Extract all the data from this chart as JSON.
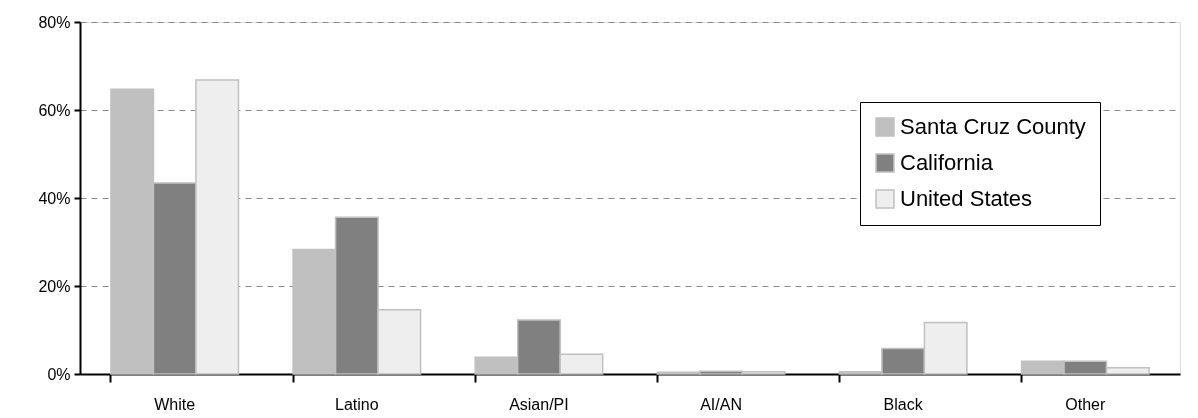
{
  "chart_data": {
    "type": "bar",
    "categories": [
      "White",
      "Latino",
      "Asian/PI",
      "AI/AN",
      "Black",
      "Other"
    ],
    "series": [
      {
        "name": "Santa Cruz County",
        "color": "#c0c0c0",
        "values": [
          64.7,
          28.3,
          3.8,
          0.4,
          0.5,
          2.9
        ]
      },
      {
        "name": "California",
        "color": "#808080",
        "values": [
          43.4,
          35.6,
          12.3,
          0.6,
          5.8,
          2.9
        ]
      },
      {
        "name": "United States",
        "color": "#eeeeee",
        "values": [
          66.8,
          14.6,
          4.5,
          0.5,
          11.7,
          1.4
        ]
      }
    ],
    "ylim": [
      0,
      80
    ],
    "yticks": [
      {
        "value": 0,
        "label": "0%"
      },
      {
        "value": 20,
        "label": "20%"
      },
      {
        "value": 40,
        "label": "40%"
      },
      {
        "value": 60,
        "label": "60%"
      },
      {
        "value": 80,
        "label": "80%"
      }
    ],
    "grid": "y",
    "legend": "top right"
  }
}
